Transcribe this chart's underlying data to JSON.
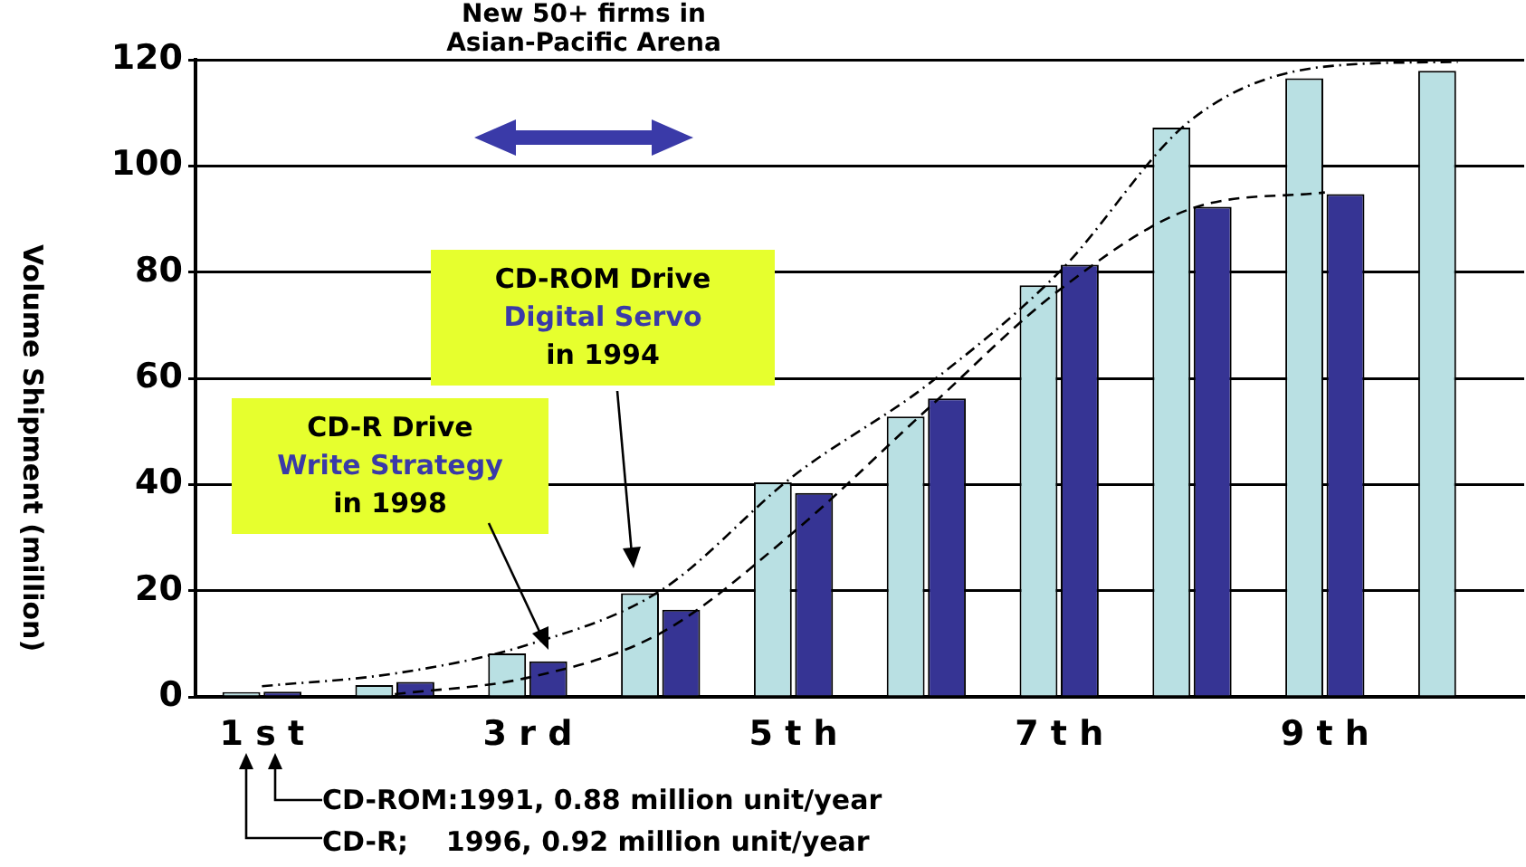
{
  "chart_data": {
    "type": "bar",
    "ylabel": "Volume Shipment (million)",
    "categories": [
      "1 s t",
      null,
      "3 r d",
      null,
      "5 t h",
      null,
      "7 t h",
      null,
      "9 t h",
      null
    ],
    "series": [
      {
        "color": "#b9e0e3",
        "values": [
          0.9,
          2.2,
          8.2,
          19.5,
          40.4,
          52.8,
          77.5,
          107.2,
          116.5,
          117.9
        ]
      },
      {
        "color": "#363494",
        "values": [
          1.0,
          2.8,
          6.7,
          16.4,
          38.4,
          56.2,
          81.4,
          92.3,
          94.7,
          null
        ]
      },
      {
        "type": "line",
        "color": "#000000",
        "line_style": "dotted",
        "values": [
          2,
          4.4,
          9.8,
          20,
          41.6,
          58.6,
          80,
          108.8,
          118.7,
          119.6
        ]
      },
      {
        "type": "line",
        "color": "#000000",
        "line_style": "dashed",
        "values": [
          null,
          0.5,
          3.6,
          12,
          31,
          54,
          76.6,
          92,
          95,
          null
        ]
      }
    ],
    "ylim": [
      0,
      120
    ],
    "yticks": [
      0,
      20,
      40,
      60,
      80,
      100,
      120
    ],
    "grid": "y",
    "legend": false,
    "annotations": [
      "New 50+ firms in\nAsian-Pacific Arena",
      "CD-ROM Drive\nDigital Servo\nin 1994",
      "CD-R Drive\nWrite Strategy\nin 1998",
      "CD-ROM:1991, 0.88 million unit/year",
      "CD-R;    1996, 0.92 million unit/year"
    ]
  }
}
